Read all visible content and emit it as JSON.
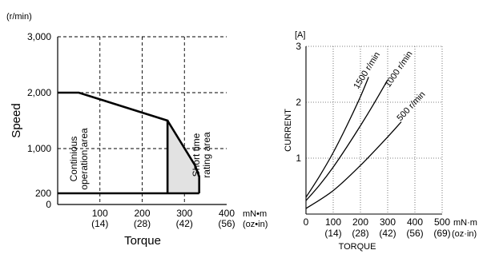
{
  "chart_data": [
    {
      "type": "area",
      "ylabel": "Speed",
      "yunit": "(r/min)",
      "xlabel": "Torque",
      "xunit": "mN•m",
      "xunit2": "(oz•in)",
      "xlim": [
        0,
        400
      ],
      "ylim": [
        0,
        3000
      ],
      "x_ticks": [
        {
          "value": 100,
          "label": "100",
          "label2": "(14)"
        },
        {
          "value": 200,
          "label": "200",
          "label2": "(28)"
        },
        {
          "value": 300,
          "label": "300",
          "label2": "(42)"
        },
        {
          "value": 400,
          "label": "400",
          "label2": "(56)"
        }
      ],
      "y_ticks": [
        {
          "value": 0,
          "label": "0"
        },
        {
          "value": 200,
          "label": "200"
        },
        {
          "value": 1000,
          "label": "1,000"
        },
        {
          "value": 2000,
          "label": "2,000"
        },
        {
          "value": 3000,
          "label": "3,000"
        }
      ],
      "x_grid": [
        100,
        200,
        300
      ],
      "y_grid": [
        1000,
        2000,
        3000
      ],
      "series": [
        {
          "id": "continuous",
          "x": [
            0,
            50,
            260,
            260
          ],
          "y": [
            2000,
            2000,
            1500,
            200
          ]
        },
        {
          "id": "short_time",
          "x": [
            260,
            325,
            335,
            335,
            260
          ],
          "y": [
            1500,
            700,
            500,
            200,
            200
          ]
        },
        {
          "id": "floor",
          "x": [
            0,
            335
          ],
          "y": [
            200,
            200
          ]
        }
      ],
      "annotations": [
        {
          "id": "continuous",
          "lines": [
            "Continious",
            "operation area"
          ]
        },
        {
          "id": "short_time",
          "lines": [
            "Short time",
            "rating area"
          ]
        }
      ],
      "colors": {
        "short_time_fill": "#e2e2e2",
        "line": "#000000"
      }
    },
    {
      "type": "line",
      "ylabel": "CURRENT",
      "yunit": "[A]",
      "xlabel": "TORQUE",
      "xunit": "mN·m",
      "xunit2": "(oz·in)",
      "xlim": [
        0,
        500
      ],
      "ylim": [
        0,
        3
      ],
      "x_ticks": [
        {
          "value": 0,
          "label": "0",
          "label2": ""
        },
        {
          "value": 100,
          "label": "100",
          "label2": "(14)"
        },
        {
          "value": 200,
          "label": "200",
          "label2": "(28)"
        },
        {
          "value": 300,
          "label": "300",
          "label2": "(42)"
        },
        {
          "value": 400,
          "label": "400",
          "label2": "(56)"
        },
        {
          "value": 500,
          "label": "500",
          "label2": "(69)"
        }
      ],
      "y_ticks": [
        {
          "value": 1,
          "label": "1"
        },
        {
          "value": 2,
          "label": "2"
        },
        {
          "value": 3,
          "label": "3"
        }
      ],
      "x_grid": [
        100,
        200,
        300,
        400,
        500
      ],
      "y_grid": [
        1,
        2,
        3
      ],
      "series": [
        {
          "name": "1500 r/min",
          "x": [
            0,
            50,
            100,
            150,
            200,
            230
          ],
          "y": [
            0.3,
            0.68,
            1.1,
            1.58,
            2.1,
            2.45
          ]
        },
        {
          "name": "1000 r/min",
          "x": [
            0,
            50,
            100,
            150,
            200,
            250,
            300
          ],
          "y": [
            0.24,
            0.52,
            0.84,
            1.2,
            1.58,
            1.98,
            2.4
          ]
        },
        {
          "name": "500 r/min",
          "x": [
            0,
            100,
            200,
            300,
            350
          ],
          "y": [
            0.1,
            0.42,
            0.87,
            1.38,
            1.65
          ]
        }
      ],
      "colors": {
        "line": "#000000",
        "grid": "#555555"
      }
    }
  ]
}
